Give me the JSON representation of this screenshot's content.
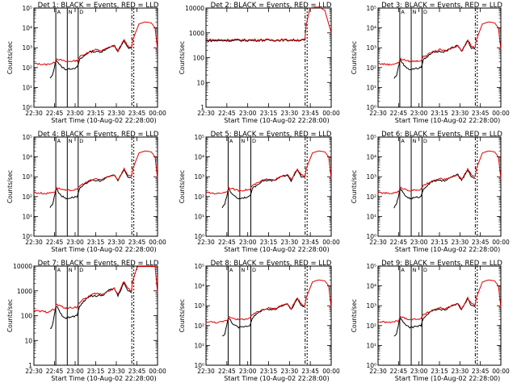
{
  "common": {
    "xlabel": "Start Time (10-Aug-02 22:28:00)",
    "ylabel": "Counts/sec",
    "x_ticks": [
      "22:30",
      "22:45",
      "23:00",
      "23:15",
      "23:30",
      "23:45",
      "00:00"
    ],
    "vertical_marker_labels": [
      "A",
      "N",
      "D"
    ],
    "series": [
      {
        "name": "BLACK = Events",
        "color": "#000000"
      },
      {
        "name": "RED = LLD",
        "color": "#e00000"
      }
    ]
  },
  "chart_data": [
    {
      "type": "line",
      "title": "Det 1: BLACK = Events, RED = LLD",
      "ylim": [
        1,
        100000
      ],
      "y_ticks": [
        "10⁰",
        "10¹",
        "10²",
        "10³",
        "10⁴",
        "10⁵"
      ],
      "markers": [
        "A",
        "N",
        "D",
        "S"
      ]
    },
    {
      "type": "line",
      "title": "Det 2: BLACK = Events, RED = LLD",
      "ylim": [
        1,
        10000
      ],
      "y_ticks": [
        "1",
        "10",
        "100",
        "1000",
        "10000"
      ],
      "markers": [
        "S"
      ]
    },
    {
      "type": "line",
      "title": "Det 3: BLACK = Events, RED = LLD",
      "ylim": [
        1,
        100000
      ],
      "y_ticks": [
        "10⁰",
        "10¹",
        "10²",
        "10³",
        "10⁴",
        "10⁵"
      ],
      "markers": [
        "A",
        "N",
        "D",
        "S"
      ]
    },
    {
      "type": "line",
      "title": "Det 4: BLACK = Events, RED = LLD",
      "ylim": [
        1,
        100000
      ],
      "y_ticks": [
        "10⁰",
        "10¹",
        "10²",
        "10³",
        "10⁴",
        "10⁵"
      ],
      "markers": [
        "A",
        "N",
        "D",
        "S"
      ]
    },
    {
      "type": "line",
      "title": "Det 5: BLACK = Events, RED = LLD",
      "ylim": [
        1,
        100000
      ],
      "y_ticks": [
        "10⁰",
        "10¹",
        "10²",
        "10³",
        "10⁴",
        "10⁵"
      ],
      "markers": [
        "A",
        "N",
        "D",
        "S"
      ]
    },
    {
      "type": "line",
      "title": "Det 6: BLACK = Events, RED = LLD",
      "ylim": [
        1,
        100000
      ],
      "y_ticks": [
        "10⁰",
        "10¹",
        "10²",
        "10³",
        "10⁴",
        "10⁵"
      ],
      "markers": [
        "A",
        "N",
        "D",
        "S"
      ]
    },
    {
      "type": "line",
      "title": "Det 7: BLACK = Events, RED = LLD",
      "ylim": [
        1,
        10000
      ],
      "y_ticks": [
        "1",
        "10",
        "100",
        "1000",
        "10000"
      ],
      "markers": [
        "A",
        "N",
        "D",
        "S"
      ]
    },
    {
      "type": "line",
      "title": "Det 8: BLACK = Events, RED = LLD",
      "ylim": [
        1,
        100000
      ],
      "y_ticks": [
        "10⁰",
        "10¹",
        "10²",
        "10³",
        "10⁴",
        "10⁵"
      ],
      "markers": [
        "A",
        "N",
        "D",
        "S"
      ]
    },
    {
      "type": "line",
      "title": "Det 9: BLACK = Events, RED = LLD",
      "ylim": [
        1,
        100000
      ],
      "y_ticks": [
        "10⁰",
        "10¹",
        "10²",
        "10³",
        "10⁴",
        "10⁵"
      ],
      "markers": [
        "A",
        "N",
        "D",
        "S"
      ]
    }
  ]
}
